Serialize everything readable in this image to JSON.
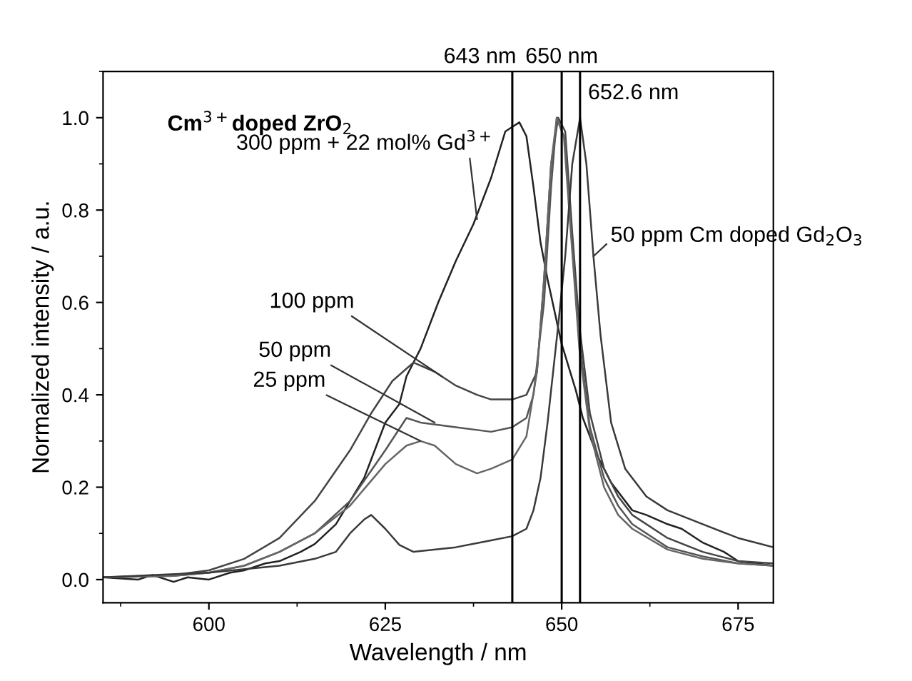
{
  "chart_data": {
    "type": "line",
    "xlabel": "Wavelength / nm",
    "ylabel": "Normalized intensity / a.u.",
    "xlim": [
      585,
      680
    ],
    "xticks": [
      600,
      625,
      650,
      675
    ],
    "ylim": [
      -0.05,
      1.1
    ],
    "yticks": [
      {
        "value": 0,
        "label": "0.0"
      },
      0.2,
      0.4,
      0.6,
      0.8,
      {
        "value": 1,
        "label": "1.0"
      }
    ],
    "grid": false,
    "legend": false,
    "marker": "none",
    "line_style": "solid",
    "series": [
      {
        "color": "#222222",
        "x": [
          585,
          590,
          592,
          595,
          597,
          600,
          603,
          605,
          608,
          610,
          613,
          615,
          618,
          620,
          622,
          623,
          625,
          627,
          628,
          630,
          632.5,
          635,
          637.5,
          640,
          642,
          643,
          644,
          645,
          646,
          647,
          648,
          649,
          650,
          651,
          652,
          653,
          654,
          655,
          657,
          660,
          662,
          665,
          667,
          670,
          673,
          675,
          680
        ],
        "values": [
          0.005,
          0.0,
          0.01,
          -0.005,
          0.005,
          0.0,
          0.015,
          0.02,
          0.035,
          0.04,
          0.06,
          0.077,
          0.12,
          0.17,
          0.22,
          0.26,
          0.34,
          0.38,
          0.44,
          0.5,
          0.6,
          0.69,
          0.77,
          0.87,
          0.97,
          0.98,
          0.99,
          0.96,
          0.85,
          0.73,
          0.65,
          0.58,
          0.51,
          0.46,
          0.41,
          0.35,
          0.31,
          0.27,
          0.21,
          0.15,
          0.14,
          0.12,
          0.11,
          0.08,
          0.06,
          0.04,
          0.03
        ]
      },
      {
        "color": "#444444",
        "x": [
          585,
          595,
          600,
          605,
          610,
          615,
          620,
          623,
          626,
          629,
          632,
          635,
          638,
          640,
          643,
          645,
          646.5,
          647.5,
          648.5,
          649.5,
          650.5,
          651.5,
          652.5,
          654,
          656,
          658,
          660,
          665,
          670,
          675,
          680
        ],
        "values": [
          0.005,
          0.01,
          0.02,
          0.045,
          0.09,
          0.17,
          0.28,
          0.36,
          0.43,
          0.47,
          0.45,
          0.42,
          0.4,
          0.39,
          0.39,
          0.4,
          0.45,
          0.65,
          0.9,
          1.0,
          0.97,
          0.75,
          0.55,
          0.36,
          0.24,
          0.18,
          0.14,
          0.09,
          0.06,
          0.04,
          0.035
        ]
      },
      {
        "color": "#555555",
        "x": [
          585,
          595,
          600,
          605,
          610,
          615,
          620,
          625,
          628,
          630,
          635,
          640,
          643,
          645,
          646,
          647.5,
          648.5,
          649.3,
          650.5,
          651.5,
          652.5,
          654,
          656,
          658,
          660,
          665,
          670,
          675,
          680
        ],
        "values": [
          0.005,
          0.008,
          0.015,
          0.03,
          0.06,
          0.1,
          0.17,
          0.28,
          0.35,
          0.34,
          0.33,
          0.32,
          0.33,
          0.35,
          0.4,
          0.6,
          0.85,
          1.0,
          0.95,
          0.72,
          0.52,
          0.33,
          0.22,
          0.16,
          0.12,
          0.07,
          0.05,
          0.035,
          0.03
        ]
      },
      {
        "color": "#666666",
        "x": [
          585,
          595,
          600,
          605,
          610,
          615,
          620,
          625,
          628,
          630,
          632,
          635,
          638,
          640,
          643,
          645,
          646.5,
          647.5,
          648.5,
          649.3,
          650.3,
          651.3,
          652.5,
          654,
          656,
          658,
          660,
          665,
          670,
          675,
          680
        ],
        "values": [
          0.005,
          0.008,
          0.015,
          0.03,
          0.06,
          0.1,
          0.16,
          0.25,
          0.29,
          0.3,
          0.29,
          0.25,
          0.23,
          0.24,
          0.26,
          0.31,
          0.45,
          0.65,
          0.9,
          1.0,
          0.96,
          0.75,
          0.5,
          0.32,
          0.2,
          0.14,
          0.11,
          0.065,
          0.045,
          0.035,
          0.03
        ]
      },
      {
        "color": "#3a3a3a",
        "x": [
          585,
          600,
          610,
          615,
          618,
          620,
          622,
          623,
          625,
          627,
          629,
          635,
          640,
          643,
          645,
          646,
          647,
          648,
          649.5,
          650.5,
          651.5,
          652.6,
          653.5,
          654.5,
          655.5,
          657,
          659,
          662,
          665,
          670,
          675,
          680
        ],
        "values": [
          0.005,
          0.015,
          0.03,
          0.045,
          0.06,
          0.1,
          0.13,
          0.14,
          0.11,
          0.075,
          0.06,
          0.07,
          0.085,
          0.094,
          0.11,
          0.15,
          0.22,
          0.34,
          0.55,
          0.7,
          0.9,
          1.0,
          0.9,
          0.7,
          0.53,
          0.34,
          0.24,
          0.18,
          0.15,
          0.12,
          0.09,
          0.07
        ]
      }
    ],
    "ref_lines": [
      {
        "axis": "x",
        "value": 643,
        "label": "643 nm",
        "color": "#000000"
      },
      {
        "axis": "x",
        "value": 650,
        "label": "650 nm",
        "color": "#000000"
      },
      {
        "axis": "x",
        "value": 652.6,
        "label": "652.6 nm",
        "color": "#000000"
      }
    ],
    "annotations": [
      "Cm$^{3+}$doped ZrO$_{2}$",
      {
        "text": "300 ppm + 22 mol% Gd$^{3+}$",
        "x": 638,
        "y": 0.78
      },
      {
        "text": "100 ppm",
        "x": 633,
        "y": 0.44
      },
      {
        "text": "50 ppm",
        "x": 632,
        "y": 0.34
      },
      {
        "text": "25 ppm",
        "x": 630,
        "y": 0.3
      },
      {
        "text": "50 ppm Cm doped Gd$_{2}$O$_{3}$",
        "x": 654.5,
        "y": 0.7
      }
    ]
  }
}
